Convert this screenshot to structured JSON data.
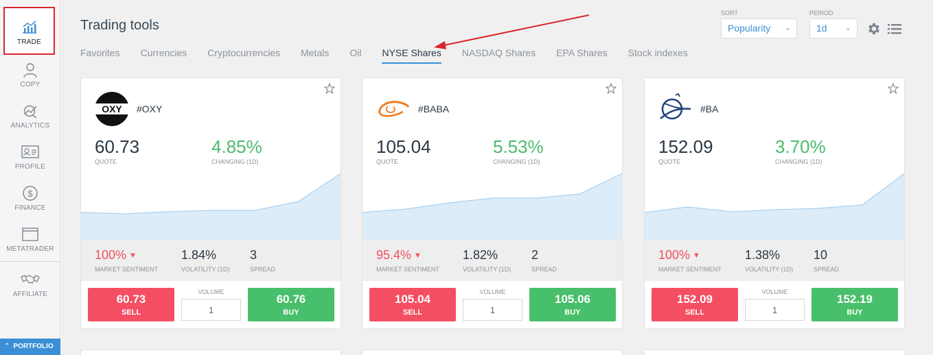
{
  "sidebar": {
    "items": [
      {
        "label": "TRADE",
        "icon": "trade-chart-icon"
      },
      {
        "label": "COPY",
        "icon": "person-icon"
      },
      {
        "label": "ANALYTICS",
        "icon": "analytics-icon"
      },
      {
        "label": "PROFILE",
        "icon": "id-card-icon"
      },
      {
        "label": "FINANCE",
        "icon": "dollar-coin-icon"
      },
      {
        "label": "METATRADER",
        "icon": "window-icon"
      },
      {
        "label": "AFFILIATE",
        "icon": "handshake-icon"
      }
    ],
    "portfolio_label": "PORTFOLIO"
  },
  "header": {
    "title": "Trading tools",
    "tabs": [
      "Favorites",
      "Currencies",
      "Cryptocurrencies",
      "Metals",
      "Oil",
      "NYSE Shares",
      "NASDAQ Shares",
      "EPA Shares",
      "Stock indexes"
    ],
    "active_tab": "NYSE Shares",
    "sort_label": "SORT",
    "sort_value": "Popularity",
    "period_label": "PERIOD",
    "period_value": "1d"
  },
  "labels": {
    "quote": "QUOTE",
    "changing": "CHANGING (1D)",
    "sentiment": "MARKET SENTIMENT",
    "volatility": "VOLATILITY (1D)",
    "spread": "SPREAD",
    "volume": "VOLUME",
    "sell": "SELL",
    "buy": "BUY"
  },
  "cards": [
    {
      "ticker": "#OXY",
      "logo_text": "OXY",
      "quote": "60.73",
      "change": "4.85%",
      "sentiment": "100%",
      "volatility": "1.84%",
      "spread": "3",
      "volume": "1",
      "sell_price": "60.73",
      "buy_price": "60.76",
      "sparkline": [
        58,
        60,
        57,
        55,
        55,
        42,
        0
      ]
    },
    {
      "ticker": "#BABA",
      "logo_text": "",
      "quote": "105.04",
      "change": "5.53%",
      "sentiment": "95.4%",
      "volatility": "1.82%",
      "spread": "2",
      "volume": "1",
      "sell_price": "105.04",
      "buy_price": "105.06",
      "sparkline": [
        58,
        53,
        44,
        37,
        37,
        31,
        0
      ]
    },
    {
      "ticker": "#BA",
      "logo_text": "",
      "quote": "152.09",
      "change": "3.70%",
      "sentiment": "100%",
      "volatility": "1.38%",
      "spread": "10",
      "volume": "1",
      "sell_price": "152.09",
      "buy_price": "152.19",
      "sparkline": [
        58,
        50,
        57,
        54,
        52,
        47,
        0
      ]
    }
  ],
  "colors": {
    "accent": "#3a8fd6",
    "sell": "#f44e63",
    "buy": "#48bf6a",
    "positive": "#4cbb6c",
    "negative": "#f0505f",
    "annotation": "#d9262c"
  }
}
